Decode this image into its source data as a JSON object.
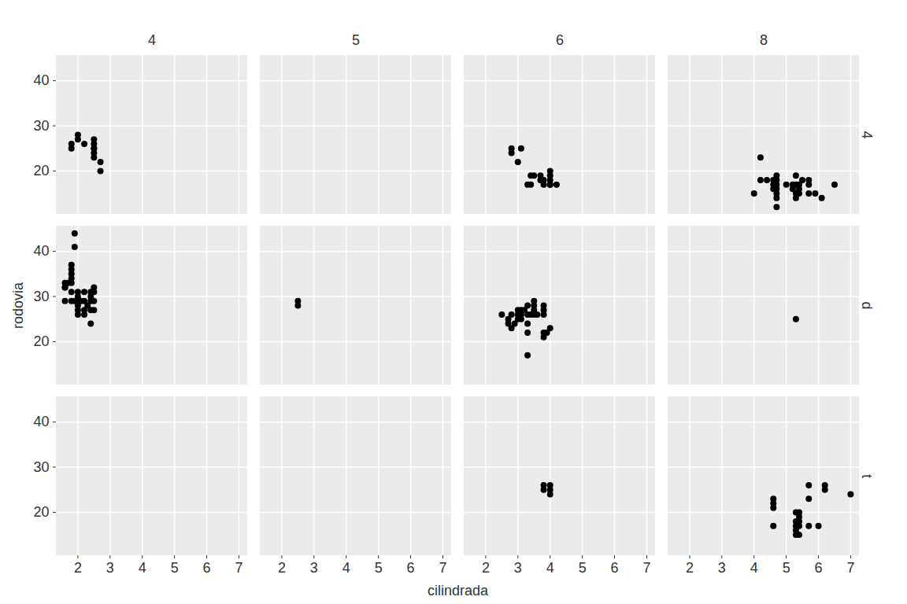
{
  "chart_data": {
    "type": "scatter",
    "x_label": "cilindrada",
    "y_label": "rodovia",
    "xlim": [
      1.33,
      7.27
    ],
    "ylim": [
      10.4,
      45.6
    ],
    "xticks": [
      2,
      3,
      4,
      5,
      6,
      7
    ],
    "yticks": [
      20,
      30,
      40
    ],
    "grid": true,
    "color": "#000000",
    "facet_columns": [
      "4",
      "5",
      "6",
      "8"
    ],
    "facet_rows": [
      "4",
      "d",
      "t"
    ],
    "panels": [
      {
        "column": "4",
        "row": "4",
        "x": [
          1.8,
          1.8,
          2.0,
          2.0,
          2.2,
          2.5,
          2.5,
          2.5,
          2.5,
          2.5,
          2.5,
          2.7,
          2.7
        ],
        "y": [
          26,
          25,
          28,
          27,
          26,
          27,
          26,
          25,
          24,
          23,
          25,
          20,
          22
        ]
      },
      {
        "column": "6",
        "row": "4",
        "x": [
          2.8,
          2.8,
          3.1,
          3.0,
          3.3,
          3.4,
          3.4,
          3.5,
          3.7,
          3.7,
          3.8,
          3.8,
          4.0,
          4.0,
          4.0,
          4.0,
          4.0,
          4.2
        ],
        "y": [
          24,
          25,
          25,
          22,
          17,
          17,
          19,
          19,
          19,
          18,
          17,
          18,
          17,
          19,
          20,
          18,
          17,
          17
        ]
      },
      {
        "column": "8",
        "row": "4",
        "x": [
          4.0,
          4.2,
          4.2,
          4.4,
          4.6,
          4.6,
          4.6,
          4.7,
          4.7,
          4.7,
          4.7,
          4.7,
          4.7,
          4.7,
          5.0,
          5.2,
          5.2,
          5.3,
          5.3,
          5.3,
          5.3,
          5.4,
          5.4,
          5.4,
          5.5,
          5.7,
          5.7,
          5.7,
          5.9,
          6.1,
          6.5
        ],
        "y": [
          15,
          23,
          18,
          18,
          18,
          17,
          16,
          17,
          19,
          12,
          16,
          15,
          14,
          18,
          17,
          16,
          17,
          19,
          17,
          14,
          15,
          17,
          16,
          15,
          18,
          18,
          17,
          15,
          15,
          14,
          17
        ]
      },
      {
        "column": "4",
        "row": "d",
        "x": [
          1.6,
          1.6,
          1.6,
          1.6,
          1.7,
          1.8,
          1.8,
          1.8,
          1.8,
          1.8,
          1.8,
          1.8,
          1.9,
          1.9,
          1.9,
          2.0,
          2.0,
          2.0,
          2.0,
          2.0,
          2.0,
          2.1,
          2.2,
          2.2,
          2.2,
          2.2,
          2.3,
          2.4,
          2.4,
          2.4,
          2.4,
          2.4,
          2.5,
          2.5,
          2.5,
          2.5
        ],
        "y": [
          33,
          32,
          29,
          32,
          33,
          29,
          31,
          34,
          35,
          36,
          37,
          33,
          44,
          41,
          29,
          26,
          29,
          28,
          31,
          30,
          27,
          29,
          26,
          27,
          29,
          31,
          28,
          24,
          27,
          30,
          31,
          29,
          29,
          32,
          31,
          27
        ]
      },
      {
        "column": "5",
        "row": "d",
        "x": [
          2.5,
          2.5
        ],
        "y": [
          29,
          28
        ]
      },
      {
        "column": "6",
        "row": "d",
        "x": [
          2.5,
          2.7,
          2.7,
          2.8,
          2.8,
          2.9,
          3.0,
          3.0,
          3.0,
          3.1,
          3.1,
          3.1,
          3.2,
          3.3,
          3.3,
          3.3,
          3.3,
          3.3,
          3.4,
          3.5,
          3.5,
          3.5,
          3.5,
          3.6,
          3.8,
          3.8,
          3.8,
          3.8,
          3.8,
          3.9,
          4.0
        ],
        "y": [
          26,
          24,
          25,
          23,
          26,
          24,
          26,
          27,
          25,
          27,
          26,
          25,
          27,
          22,
          24,
          17,
          28,
          26,
          26,
          26,
          28,
          29,
          27,
          26,
          28,
          27,
          26,
          22,
          21,
          22,
          23
        ]
      },
      {
        "column": "8",
        "row": "d",
        "x": [
          5.3
        ],
        "y": [
          25
        ]
      },
      {
        "column": "6",
        "row": "t",
        "x": [
          3.8,
          3.8,
          4.0,
          4.0,
          4.0
        ],
        "y": [
          26,
          25,
          26,
          24,
          25
        ]
      },
      {
        "column": "8",
        "row": "t",
        "x": [
          4.6,
          4.6,
          4.6,
          4.6,
          5.3,
          5.3,
          5.3,
          5.3,
          5.3,
          5.4,
          5.4,
          5.4,
          5.4,
          5.4,
          5.7,
          5.7,
          5.7,
          6.0,
          6.2,
          6.2,
          7.0
        ],
        "y": [
          23,
          22,
          21,
          17,
          16,
          20,
          17,
          18,
          15,
          15,
          18,
          17,
          20,
          19,
          26,
          23,
          17,
          17,
          26,
          25,
          24
        ]
      }
    ]
  }
}
